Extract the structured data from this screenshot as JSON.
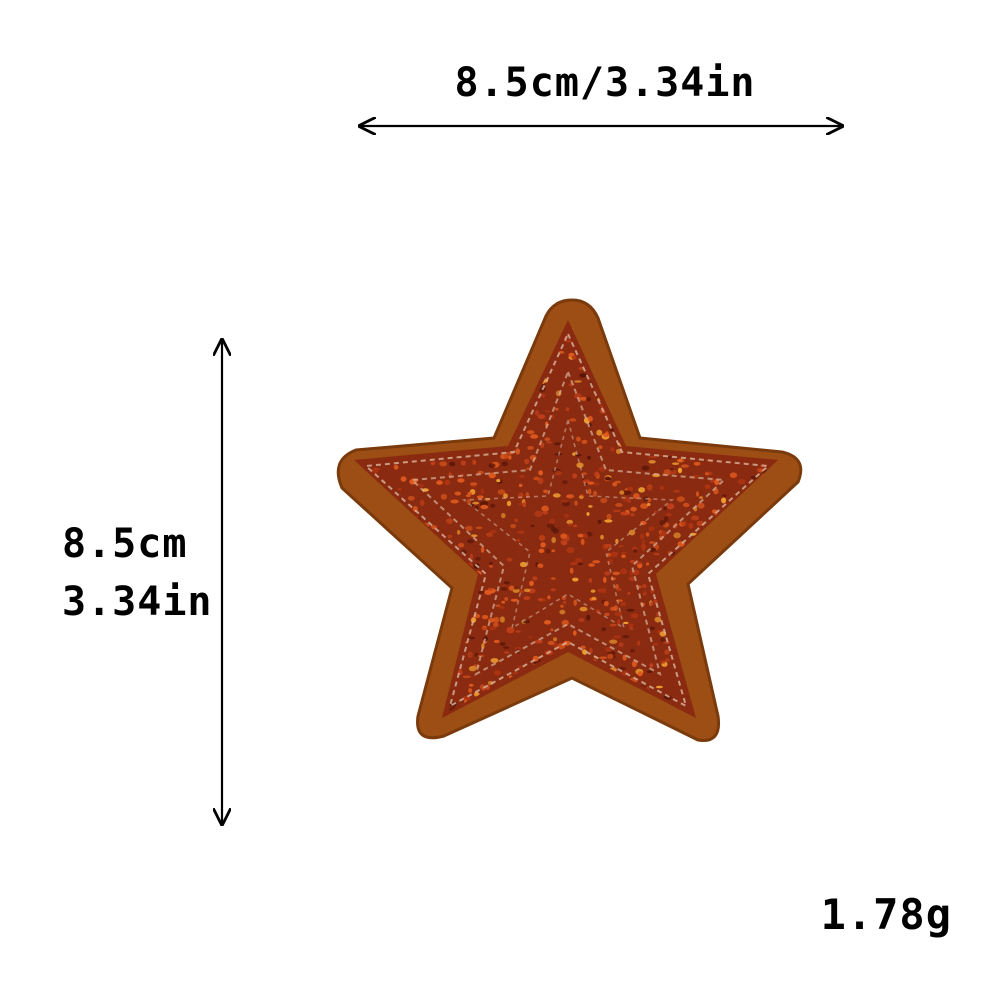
{
  "dimensions": {
    "width_text": "8.5cm/3.34in",
    "height_line1": "8.5cm",
    "height_line2": "3.34in"
  },
  "weight": {
    "text": "1.78g"
  },
  "product": {
    "icon": "star-patch",
    "colors": {
      "felt": "#9c4e14",
      "felt_dark": "#7a3a0c",
      "sequin_base": "#8a2a10",
      "sequin_bright": "#e05a1e",
      "sequin_gold": "#f0a030",
      "stitch": "#d9b7a0"
    }
  }
}
